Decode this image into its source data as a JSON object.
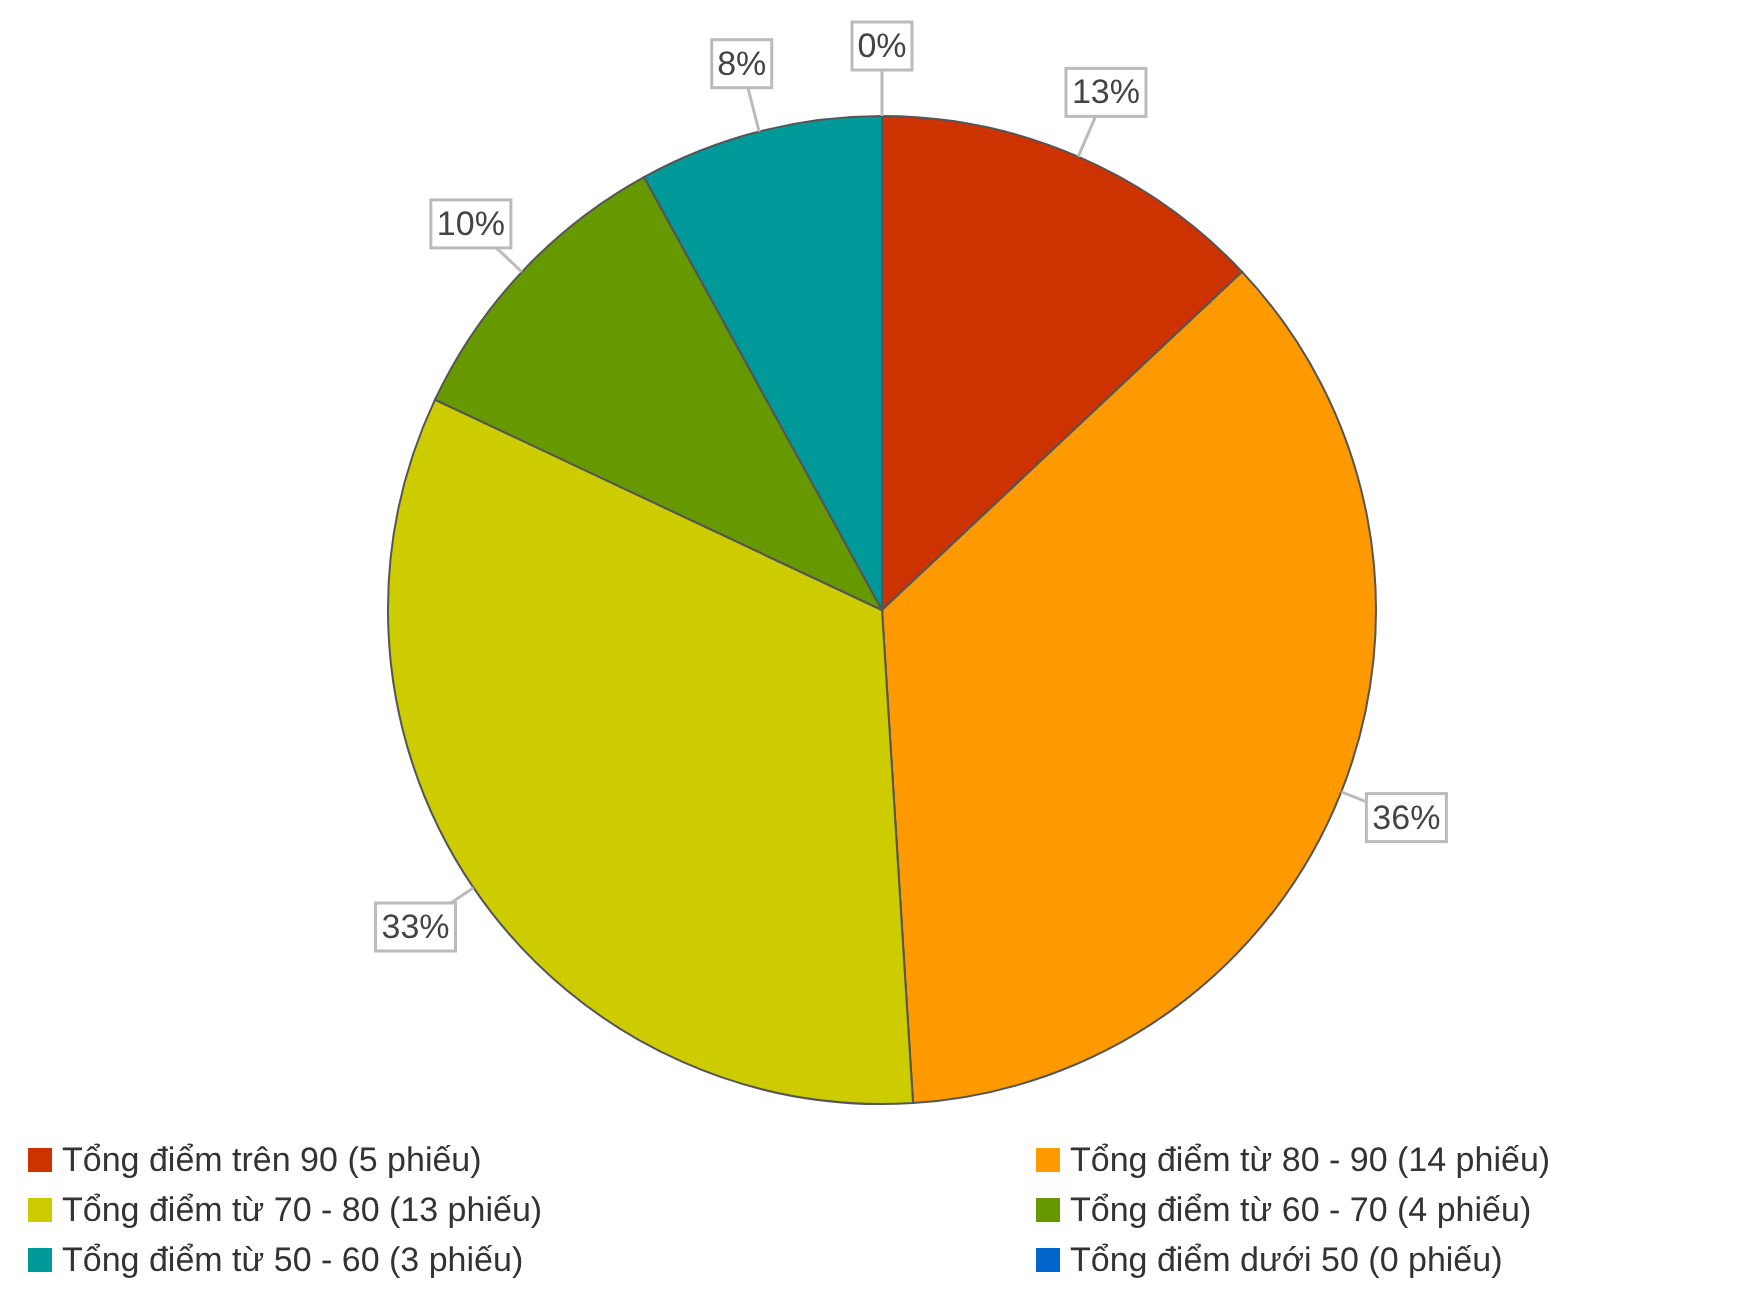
{
  "chart_data": {
    "type": "pie",
    "categories": [
      "Tổng điểm trên 90 (5 phiếu)",
      "Tổng điểm từ 80 - 90 (14 phiếu)",
      "Tổng điểm từ 70 - 80 (13 phiếu)",
      "Tổng điểm từ 60 - 70 (4 phiếu)",
      "Tổng điểm từ 50 - 60 (3 phiếu)",
      "Tổng điểm dưới 50 (0 phiếu)"
    ],
    "values": [
      13,
      36,
      33,
      10,
      8,
      0
    ],
    "value_labels": [
      "13%",
      "36%",
      "33%",
      "10%",
      "8%",
      "0%"
    ],
    "colors": [
      "#cc3300",
      "#ff9900",
      "#cccc00",
      "#669900",
      "#009999",
      "#0066cc"
    ],
    "legend": "bottom"
  }
}
